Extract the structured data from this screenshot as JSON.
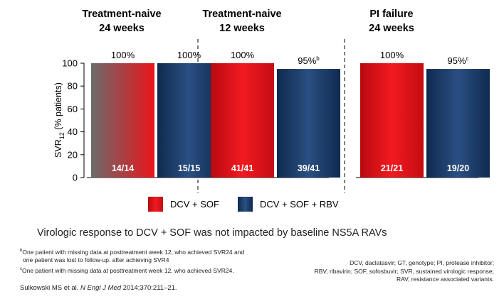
{
  "chart_data": {
    "type": "bar",
    "ylabel_main": "SVR",
    "ylabel_sub": "12",
    "ylabel_rest": " (% patients)",
    "ylim": [
      0,
      100
    ],
    "yticks": [
      "0",
      "20",
      "40",
      "60",
      "80",
      "100"
    ],
    "grid": false,
    "groups": [
      {
        "title_line1": "Treatment-naive",
        "title_line2": "24 weeks",
        "bars": [
          {
            "series": "DCV + SOF",
            "value": 100,
            "label": "100%",
            "inbar": "14/14"
          },
          {
            "series": "DCV + SOF + RBV",
            "value": 100,
            "label": "100%",
            "inbar": "15/15"
          }
        ]
      },
      {
        "title_line1": "Treatment-naive",
        "title_line2": "12 weeks",
        "bars": [
          {
            "series": "DCV + SOF",
            "value": 100,
            "label": "100%",
            "inbar": "41/41"
          },
          {
            "series": "DCV + SOF + RBV",
            "value": 95,
            "label": "95%",
            "sup": "b",
            "inbar": "39/41"
          }
        ]
      },
      {
        "title_line1": "PI failure",
        "title_line2": "24 weeks",
        "bars": [
          {
            "series": "DCV + SOF",
            "value": 100,
            "label": "100%",
            "inbar": "21/21"
          },
          {
            "series": "DCV + SOF + RBV",
            "value": 95,
            "label": "95%",
            "sup": "c",
            "inbar": "19/20"
          }
        ]
      }
    ],
    "legend": [
      {
        "name": "DCV + SOF",
        "color": "#e8151b"
      },
      {
        "name": "DCV + SOF + RBV",
        "color": "#1b3a66"
      }
    ]
  },
  "headline": "Virologic response to DCV + SOF was not impacted by baseline NS5A RAVs",
  "footnotes": {
    "b_sup": "b",
    "b_line1": "One patient with missing data at posttreatment week 12, who achieved SVR24 and",
    "b_line2": "one patient was lost to follow-up. after achieving SVR4",
    "c_sup": "c",
    "c_line1": "One patient with missing data at posttreatment week 12, who achieved SVR24."
  },
  "abbreviations": {
    "line1": "DCV, daclatasvir; GT, genotype; PI, protease inhibitor;",
    "line2": "RBV, ribavirin; SOF, sofosbuvir; SVR, sustained virologic response;",
    "line3": "RAV, resistance associated variants."
  },
  "reference": {
    "authors": "Sulkowski MS et al. ",
    "journal": "N Engl J Med",
    "rest": " 2014;370:211–21."
  }
}
